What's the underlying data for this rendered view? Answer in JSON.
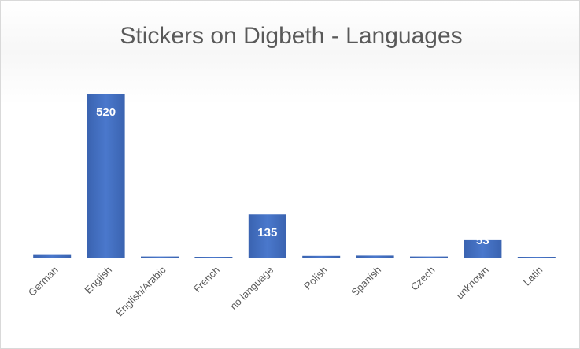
{
  "chart_data": {
    "type": "bar",
    "title": "Stickers on Digbeth - Languages",
    "categories": [
      "German",
      "English",
      "English/Arabic",
      "French",
      "no language",
      "Polish",
      "Spanish",
      "Czech",
      "unknown",
      "Latin"
    ],
    "values": [
      6,
      520,
      1,
      0,
      135,
      3,
      4,
      1,
      53,
      0
    ],
    "color": "#4472c4"
  }
}
